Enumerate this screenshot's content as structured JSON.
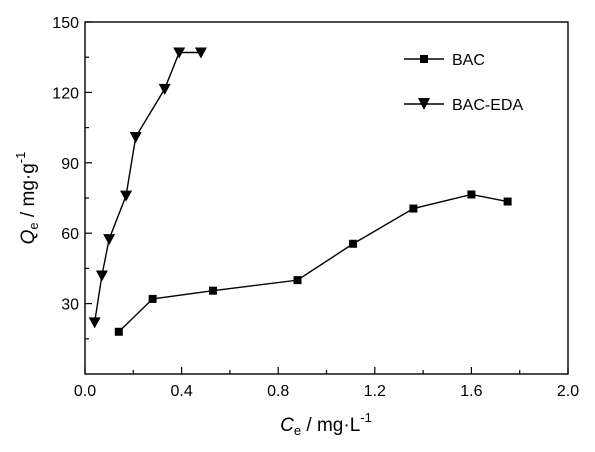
{
  "chart_data": {
    "type": "line",
    "title": "",
    "xlabel": {
      "symbol": "C",
      "subscript": "e",
      "rest": " / mg·L",
      "superscript": "-1"
    },
    "ylabel": {
      "symbol": "Q",
      "subscript": "e",
      "rest": " / mg·g",
      "superscript": "-1"
    },
    "xlim": [
      0.0,
      2.0
    ],
    "ylim": [
      0,
      150
    ],
    "xticks": [
      0.0,
      0.4,
      0.8,
      1.2,
      1.6,
      2.0
    ],
    "xtick_labels": [
      "0.0",
      "0.4",
      "0.8",
      "1.2",
      "1.6",
      "2.0"
    ],
    "yticks": [
      30,
      60,
      90,
      120,
      150
    ],
    "ytick_labels": [
      "30",
      "60",
      "90",
      "120",
      "150"
    ],
    "grid": false,
    "legend_position": "top-right",
    "series": [
      {
        "name": "BAC",
        "marker": "square",
        "color": "#000000",
        "x": [
          0.14,
          0.28,
          0.53,
          0.88,
          1.11,
          1.36,
          1.6,
          1.75
        ],
        "y": [
          18,
          32,
          35.5,
          40,
          55.5,
          70.5,
          76.5,
          73.5
        ]
      },
      {
        "name": "BAC-EDA",
        "marker": "triangle-down",
        "color": "#000000",
        "x": [
          0.04,
          0.07,
          0.1,
          0.17,
          0.21,
          0.33,
          0.39,
          0.48
        ],
        "y": [
          22,
          42,
          57.5,
          76,
          101,
          121.5,
          137,
          137
        ]
      }
    ]
  }
}
